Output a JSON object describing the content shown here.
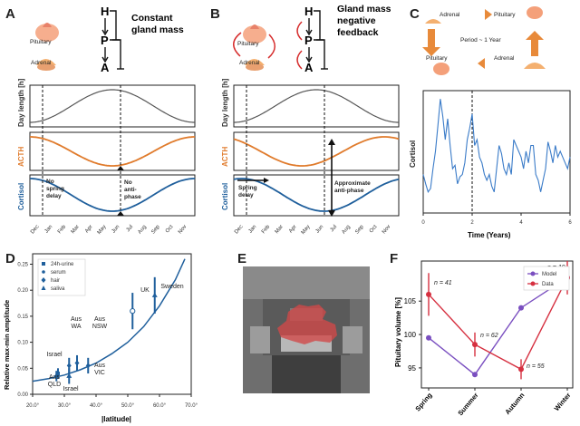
{
  "panels": {
    "A": {
      "label": "A",
      "title": [
        "Constant",
        "gland mass"
      ],
      "organs": [
        "Pituitary",
        "Adrenal"
      ],
      "hpa": [
        "H",
        "P",
        "A"
      ],
      "ylabels": [
        "Day length [h]",
        "ACTH",
        "Cortisol"
      ],
      "months": [
        "Dec",
        "Jan",
        "Feb",
        "Mar",
        "Apr",
        "May",
        "Jun",
        "Jul",
        "Aug",
        "Sep",
        "Oct",
        "Nov"
      ],
      "annotations": [
        [
          "No",
          "spring",
          "delay"
        ],
        [
          "No",
          "anti-",
          "phase"
        ]
      ]
    },
    "B": {
      "label": "B",
      "title": [
        "Gland mass",
        "negative",
        "feedback"
      ],
      "organs": [
        "Pituitary",
        "Adrenal"
      ],
      "hpa": [
        "H",
        "P",
        "A"
      ],
      "ylabels": [
        "Day length [h]",
        "ACTH",
        "Cortisol"
      ],
      "months": [
        "Dec",
        "Jan",
        "Feb",
        "Mar",
        "Apr",
        "May",
        "Jun",
        "Jul",
        "Aug",
        "Sep",
        "Oct",
        "Nov"
      ],
      "annotations": [
        [
          "Spring",
          "delay"
        ],
        [
          "Approximate",
          "anti-phase"
        ]
      ]
    },
    "C": {
      "label": "C",
      "cycle": [
        "Adrenal",
        "Pituitary",
        "Period ~ 1 Year",
        "Pituitary",
        "Adrenal"
      ],
      "ylabel": "Cortisol",
      "xlabel": "Time (Years)",
      "xticks": [
        "0",
        "2",
        "4",
        "6"
      ]
    },
    "D": {
      "label": "D",
      "ylabel": "Relative max-min amplitude",
      "xlabel": "|latitude|",
      "xticks": [
        "20.0°",
        "30.0°",
        "40.0°",
        "50.0°",
        "60.0°",
        "70.0°"
      ],
      "yticks": [
        "0.00",
        "0.05",
        "0.10",
        "0.15",
        "0.20",
        "0.25"
      ],
      "legend": [
        "24h-urine",
        "serum",
        "hair",
        "saliva"
      ],
      "points": [
        "UK",
        "Sweden",
        "Aus\nWA",
        "Aus\nNSW",
        "Israel",
        "Israel",
        "Aus\nQLD",
        "Aus\nVIC"
      ]
    },
    "E": {
      "label": "E"
    },
    "F": {
      "label": "F",
      "ylabel": "Pituitary volume [%]",
      "yticks": [
        "95",
        "100",
        "105"
      ],
      "legend": [
        "Model",
        "Data"
      ],
      "annotations": [
        "n = 41",
        "n = 62",
        "n = 55",
        "n = 19"
      ]
    }
  },
  "chart_data": [
    {
      "type": "line",
      "panel": "C",
      "ylabel": "Cortisol",
      "xlabel": "Time (Years)",
      "xlim": [
        0,
        6
      ],
      "x": [
        0,
        0.1,
        0.2,
        0.3,
        0.4,
        0.5,
        0.6,
        0.7,
        0.8,
        0.9,
        1.0,
        1.1,
        1.2,
        1.3,
        1.4,
        1.5,
        1.6,
        1.7,
        1.8,
        1.9,
        2.0,
        2.1,
        2.2,
        2.3,
        2.4,
        2.5,
        2.6,
        2.7,
        2.8,
        2.9,
        3.0,
        3.1,
        3.2,
        3.3,
        3.4,
        3.5,
        3.6,
        3.7,
        3.8,
        3.9,
        4.0,
        4.1,
        4.2,
        4.3,
        4.4,
        4.5,
        4.6,
        4.7,
        4.8,
        4.9,
        5.0,
        5.1,
        5.2,
        5.3,
        5.4,
        5.5,
        5.6,
        5.7,
        5.8,
        5.9,
        6.0
      ],
      "y": [
        0.3,
        0.22,
        0.15,
        0.18,
        0.35,
        0.5,
        0.72,
        0.95,
        0.8,
        0.6,
        0.78,
        0.55,
        0.35,
        0.38,
        0.22,
        0.28,
        0.3,
        0.4,
        0.6,
        0.7,
        0.82,
        0.55,
        0.6,
        0.45,
        0.4,
        0.3,
        0.25,
        0.3,
        0.2,
        0.15,
        0.35,
        0.55,
        0.48,
        0.35,
        0.3,
        0.4,
        0.3,
        0.6,
        0.55,
        0.5,
        0.45,
        0.35,
        0.5,
        0.4,
        0.55,
        0.55,
        0.3,
        0.25,
        0.15,
        0.25,
        0.35,
        0.58,
        0.5,
        0.4,
        0.55,
        0.45,
        0.5,
        0.45,
        0.4,
        0.35,
        0.45
      ]
    },
    {
      "type": "scatter",
      "panel": "D",
      "xlabel": "|latitude|",
      "ylabel": "Relative max-min amplitude",
      "xlim": [
        20,
        70
      ],
      "ylim": [
        0,
        0.27
      ],
      "points": [
        {
          "label": "UK",
          "x": 51.5,
          "y": 0.16,
          "err": 0.035,
          "marker": "serum"
        },
        {
          "label": "Sweden",
          "x": 58.5,
          "y": 0.19,
          "err": 0.035,
          "marker": "saliva"
        },
        {
          "label": "Aus\nWA",
          "x": 31.5,
          "y": 0.055,
          "err": 0.015,
          "marker": "hair"
        },
        {
          "label": "Aus\nNSW",
          "x": 34.0,
          "y": 0.06,
          "err": 0.015,
          "marker": "hair"
        },
        {
          "label": "Israel",
          "x": 28.0,
          "y": 0.04,
          "err": 0.01,
          "marker": "24h-urine"
        },
        {
          "label": "Israel",
          "x": 31.5,
          "y": 0.035,
          "err": 0.015,
          "marker": "saliva"
        },
        {
          "label": "Aus\nQLD",
          "x": 27.5,
          "y": 0.035,
          "err": 0.01,
          "marker": "hair"
        },
        {
          "label": "Aus\nVIC",
          "x": 37.5,
          "y": 0.055,
          "err": 0.015,
          "marker": "hair"
        }
      ],
      "fit_curve": {
        "x": [
          20,
          25,
          30,
          35,
          40,
          45,
          50,
          55,
          60,
          65,
          68
        ],
        "y": [
          0.025,
          0.03,
          0.037,
          0.047,
          0.06,
          0.078,
          0.1,
          0.13,
          0.17,
          0.22,
          0.26
        ]
      }
    },
    {
      "type": "line",
      "panel": "F",
      "ylabel": "Pituitary volume [%]",
      "categories": [
        "Spring",
        "Summer",
        "Autumn",
        "Winter"
      ],
      "ylim": [
        92,
        111
      ],
      "series": [
        {
          "name": "Model",
          "values": [
            99.5,
            94.0,
            104.0,
            108.5
          ],
          "color": "#7a4fc0"
        },
        {
          "name": "Data",
          "values": [
            106.0,
            98.5,
            94.8,
            108.5
          ],
          "err": [
            3.2,
            1.8,
            1.5,
            2.5
          ],
          "color": "#d63040"
        }
      ]
    }
  ],
  "colors": {
    "gray_curve": "#555555",
    "acth": "#e07b2c",
    "cortisol": "#1f5f9c",
    "panel_c_line": "#3a7bc8",
    "feedback": "#d62c2c",
    "fit": "#1f5f9c",
    "model": "#7a4fc0",
    "data": "#d63040"
  },
  "icons": [
    "pituitary-icon",
    "adrenal-icon",
    "mri-image"
  ]
}
